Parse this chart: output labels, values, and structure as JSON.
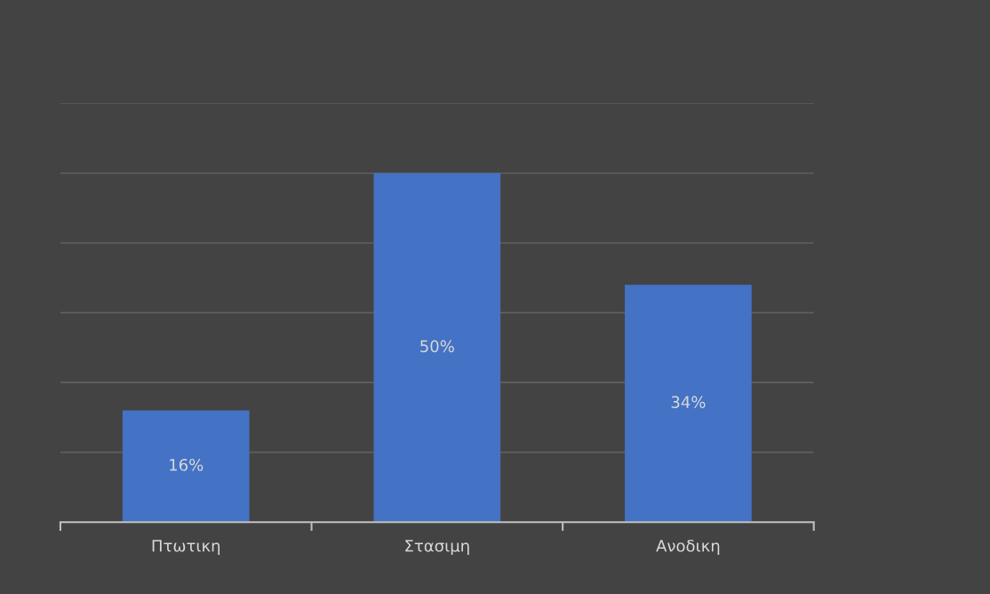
{
  "chart_data": {
    "type": "bar",
    "categories": [
      "Πτωτικη",
      "Στασιμη",
      "Ανοδικη"
    ],
    "values": [
      16,
      50,
      34
    ],
    "value_labels": [
      "16%",
      "50%",
      "34%"
    ],
    "color": "#4472c4",
    "ylim": [
      0,
      60
    ],
    "yticks": [
      {
        "value": 0,
        "label": null
      },
      {
        "value": 10,
        "label": null
      },
      {
        "value": 20,
        "label": null
      },
      {
        "value": 30,
        "label": null
      },
      {
        "value": 40,
        "label": null
      },
      {
        "value": 50,
        "label": null
      },
      {
        "value": 60,
        "label": null
      }
    ],
    "grid": "y",
    "legend": false
  }
}
